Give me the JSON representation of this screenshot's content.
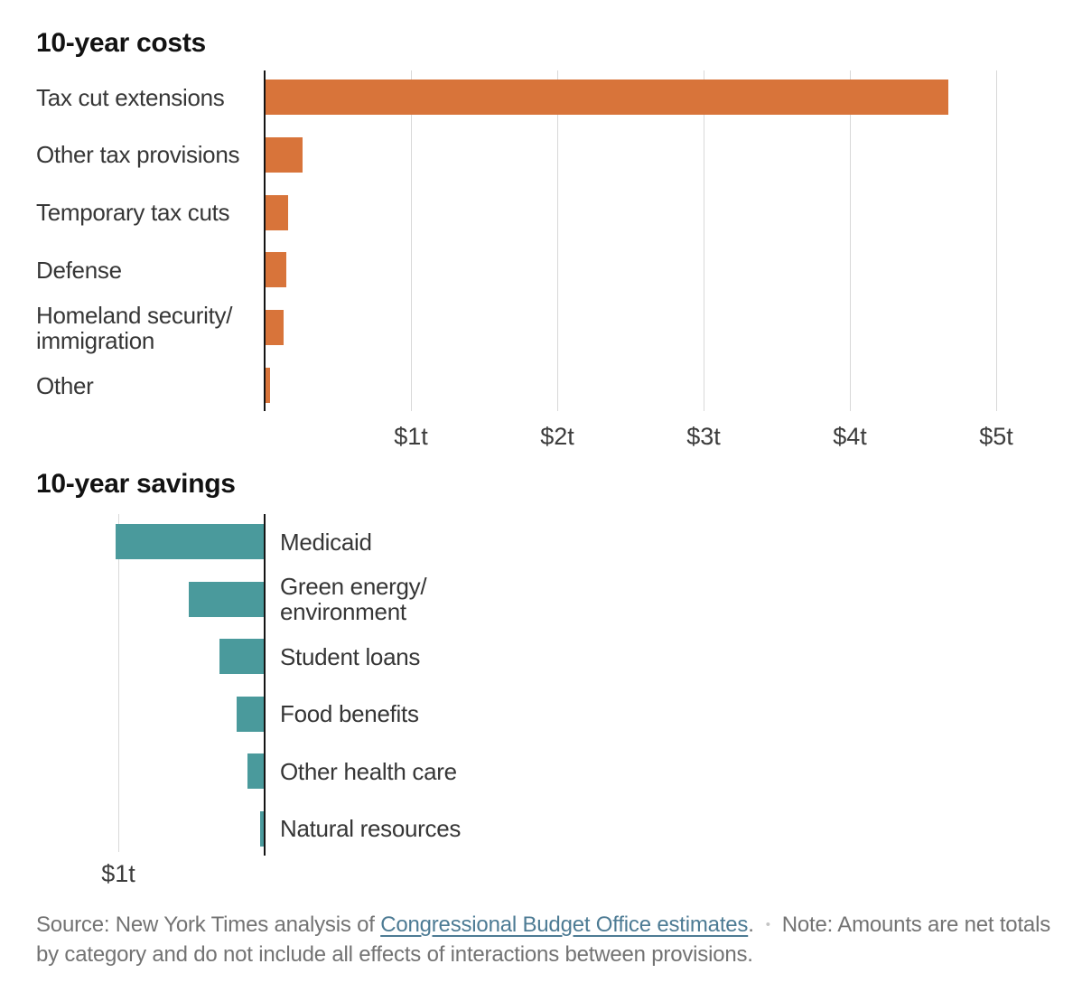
{
  "colors": {
    "costs_bar": "#d8743a",
    "savings_bar": "#4a9a9c",
    "link": "#4d7b94",
    "gridline": "#d8d8d8",
    "axis": "#141414",
    "separator_dot": "#c4c4c4"
  },
  "chart_data": [
    {
      "type": "bar",
      "orientation": "horizontal",
      "bars_extend": "right",
      "title": "10-year costs",
      "categories": [
        "Tax cut extensions",
        "Other tax provisions",
        "Temporary tax cuts",
        "Defense",
        "Homeland security/immigration",
        "Other"
      ],
      "values": [
        4.67,
        0.26,
        0.16,
        0.15,
        0.13,
        0.04
      ],
      "unit": "trillions of dollars",
      "bar_color": "#d8743a",
      "xlim": [
        0,
        5.3
      ],
      "grid": true,
      "x_ticks": [
        {
          "label": "$1t",
          "value": 1
        },
        {
          "label": "$2t",
          "value": 2
        },
        {
          "label": "$3t",
          "value": 3
        },
        {
          "label": "$4t",
          "value": 4
        },
        {
          "label": "$5t",
          "value": 5
        }
      ]
    },
    {
      "type": "bar",
      "orientation": "horizontal",
      "bars_extend": "left",
      "title": "10-year savings",
      "categories": [
        "Medicaid",
        "Green energy/environment",
        "Student loans",
        "Food benefits",
        "Other health care",
        "Natural resources"
      ],
      "values": [
        1.02,
        0.52,
        0.31,
        0.19,
        0.12,
        0.03
      ],
      "unit": "trillions of dollars",
      "bar_color": "#4a9a9c",
      "xlim": [
        0,
        1.15
      ],
      "grid": true,
      "x_ticks": [
        {
          "label": "$1t",
          "value": 1
        }
      ]
    }
  ],
  "footer": {
    "line1": {
      "source_prefix": "Source: New York Times analysis of ",
      "source_link": "Congressional Budget Office estimates",
      "after_link": ".",
      "separator": "•",
      "note_start": "Note: Amounts are net totals"
    },
    "line2": "by category and do not include all effects of interactions between provisions."
  }
}
